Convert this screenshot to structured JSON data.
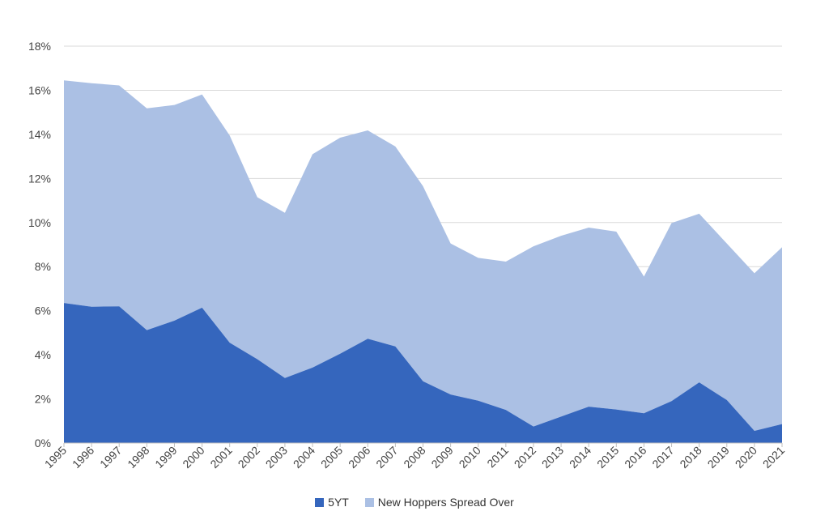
{
  "chart_data": {
    "type": "area",
    "stacked": true,
    "categories": [
      "1995",
      "1996",
      "1997",
      "1998",
      "1999",
      "2000",
      "2001",
      "2002",
      "2003",
      "2004",
      "2005",
      "2006",
      "2007",
      "2008",
      "2009",
      "2010",
      "2011",
      "2012",
      "2013",
      "2014",
      "2015",
      "2016",
      "2017",
      "2018",
      "2019",
      "2020",
      "2021"
    ],
    "series": [
      {
        "name": "5YT",
        "color": "#3566bd",
        "values": [
          6.35,
          6.18,
          6.2,
          5.12,
          5.55,
          6.14,
          4.55,
          3.8,
          2.95,
          3.42,
          4.05,
          4.73,
          4.38,
          2.8,
          2.2,
          1.92,
          1.5,
          0.75,
          1.2,
          1.65,
          1.52,
          1.35,
          1.9,
          2.75,
          1.95,
          0.55,
          0.86
        ]
      },
      {
        "name": "New Hoppers Spread Over",
        "color": "#abc0e4",
        "values": [
          10.1,
          10.14,
          10.02,
          10.06,
          9.78,
          9.67,
          9.4,
          7.35,
          7.49,
          9.68,
          9.8,
          9.45,
          9.07,
          8.85,
          6.85,
          6.48,
          6.73,
          8.17,
          8.2,
          8.12,
          8.07,
          6.2,
          8.08,
          7.65,
          7.1,
          7.15,
          8.02
        ]
      }
    ],
    "ylim": [
      0,
      18
    ],
    "yticks": [
      "0%",
      "2%",
      "4%",
      "6%",
      "8%",
      "10%",
      "12%",
      "14%",
      "16%",
      "18%"
    ],
    "grid": true,
    "legend": "bottom"
  }
}
